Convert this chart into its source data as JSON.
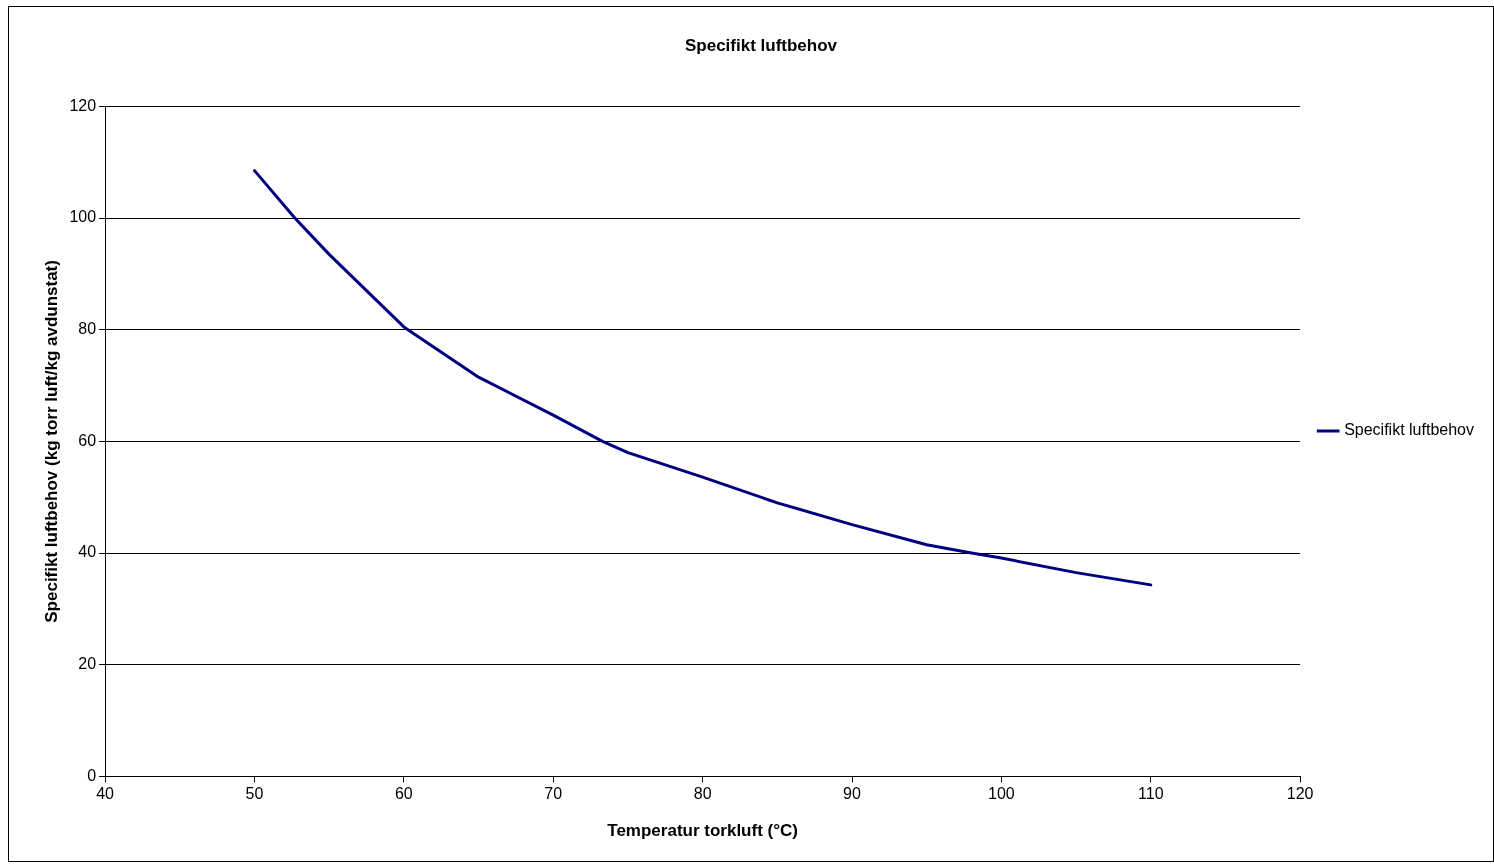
{
  "chart_data": {
    "type": "line",
    "title": "Specifikt luftbehov",
    "xlabel": "Temperatur torkluft (°C)",
    "ylabel": "Specifikt luftbehov (kg torr luft/kg avdunstat)",
    "xlim": [
      40,
      120
    ],
    "xticks": [
      40,
      50,
      60,
      70,
      80,
      90,
      100,
      110,
      120
    ],
    "ylim": [
      0,
      120
    ],
    "yticks": [
      0,
      20,
      40,
      60,
      80,
      100,
      120
    ],
    "grid": "y",
    "legend": "right",
    "marker": "none",
    "line_style": "solid",
    "series": [
      {
        "name": "Specifikt luftbehov",
        "color": "#000080",
        "x": [
          50,
          52.7,
          55,
          60,
          65,
          70,
          73.3,
          75,
          80,
          85,
          90,
          95,
          98,
          100,
          105,
          110
        ],
        "values": [
          108.5,
          100,
          93.5,
          80.5,
          71.5,
          64.7,
          60,
          58,
          53.6,
          49,
          45.1,
          41.5,
          40,
          39.1,
          36.5,
          34.3
        ]
      }
    ]
  }
}
